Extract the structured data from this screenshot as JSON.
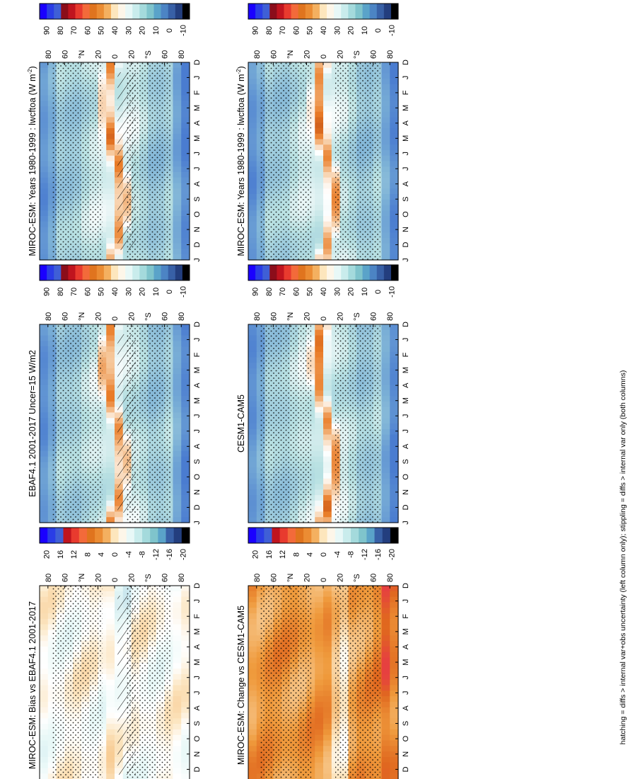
{
  "figure": {
    "caption": "hatching = diffs > internal var+obs uncertainty (left column only); stippling = diffs > internal var only (both columns)"
  },
  "colorbars": {
    "absolute": {
      "labels": [
        "90",
        "80",
        "70",
        "60",
        "50",
        "40",
        "30",
        "20",
        "10",
        "0",
        "-10"
      ],
      "colors": [
        "#1a00ff",
        "#2a3de6",
        "#3f5fd6",
        "#8b0d1a",
        "#c0141e",
        "#e83a2e",
        "#f36a3a",
        "#e0741e",
        "#eb8c33",
        "#f4b060",
        "#fde6bd",
        "#fdf6e9",
        "#e8f8f7",
        "#c9ecec",
        "#a4dadc",
        "#7fc4cc",
        "#5aa3c9",
        "#4c84c4",
        "#3860a6",
        "#233e7e",
        "#000000"
      ]
    },
    "difference": {
      "labels": [
        "20",
        "16",
        "12",
        "8",
        "4",
        "0",
        "-4",
        "-8",
        "-12",
        "-16",
        "-20"
      ],
      "colors": [
        "#1a00ff",
        "#2a3de6",
        "#3f5fd6",
        "#c0141e",
        "#e83a2e",
        "#f36a3a",
        "#e0741e",
        "#eb8c33",
        "#f4b060",
        "#fde6bd",
        "#fdf6e9",
        "#e8f8f7",
        "#c9ecec",
        "#a4dadc",
        "#7fc4cc",
        "#5aa3c9",
        "#3860a6",
        "#233e7e",
        "#000000"
      ]
    }
  },
  "chart_data": [
    {
      "type": "heatmap",
      "panel": "top-left",
      "title": "MIROC-ESM: Years 1980-1999 : lwcftoa (W m",
      "title_sup": "-2",
      "title_close": ")",
      "variable": "lwcftoa",
      "units": "W m-2",
      "x": [
        "D",
        "J",
        "F",
        "M",
        "A",
        "M",
        "J",
        "J",
        "A",
        "S",
        "O",
        "N",
        "D",
        "J"
      ],
      "y": [
        "80",
        "60",
        "°N",
        "20",
        "0",
        "20",
        "°S",
        "60",
        "80"
      ],
      "colorbar": "absolute",
      "range": [
        -10,
        90
      ],
      "hatching": true,
      "stippling": true
    },
    {
      "type": "heatmap",
      "panel": "top-right",
      "title": "MIROC-ESM: Years 1980-1999 : lwcftoa (W m",
      "title_sup": "-2",
      "title_close": ")",
      "variable": "lwcftoa",
      "units": "W m-2",
      "x": [
        "D",
        "J",
        "F",
        "M",
        "A",
        "M",
        "J",
        "J",
        "A",
        "S",
        "O",
        "N",
        "D",
        "J"
      ],
      "y": [
        "80",
        "60",
        "°N",
        "20",
        "0",
        "20",
        "°S",
        "60",
        "80"
      ],
      "colorbar": "absolute",
      "range": [
        -10,
        90
      ],
      "hatching": false,
      "stippling": true
    },
    {
      "type": "heatmap",
      "panel": "middle-left",
      "title": "EBAF4.1 2001-2017 Uncer=15 W/m2",
      "title_sup": "",
      "title_close": "",
      "x": [
        "D",
        "J",
        "F",
        "M",
        "A",
        "M",
        "J",
        "J",
        "A",
        "S",
        "O",
        "N",
        "D",
        "J"
      ],
      "y": [
        "80",
        "60",
        "°N",
        "20",
        "0",
        "20",
        "°S",
        "60",
        "80"
      ],
      "colorbar": "absolute",
      "range": [
        -10,
        90
      ],
      "hatching": true,
      "stippling": true
    },
    {
      "type": "heatmap",
      "panel": "middle-right",
      "title": "CESM1-CAM5",
      "title_sup": "",
      "title_close": "",
      "x": [
        "D",
        "J",
        "F",
        "M",
        "A",
        "M",
        "J",
        "J",
        "A",
        "S",
        "O",
        "N",
        "D",
        "J"
      ],
      "y": [
        "80",
        "60",
        "°N",
        "20",
        "0",
        "20",
        "°S",
        "60",
        "80"
      ],
      "colorbar": "absolute",
      "range": [
        -10,
        90
      ],
      "hatching": false,
      "stippling": true
    },
    {
      "type": "heatmap",
      "panel": "bottom-left",
      "title": "MIROC-ESM: Bias vs EBAF4.1 2001-2017",
      "title_sup": "",
      "title_close": "",
      "x": [
        "D",
        "J",
        "F",
        "M",
        "A",
        "M",
        "J",
        "J",
        "A",
        "S",
        "O",
        "N",
        "D",
        "J"
      ],
      "y": [
        "80",
        "60",
        "°N",
        "20",
        "0",
        "20",
        "°S",
        "60",
        "80"
      ],
      "colorbar": "difference",
      "range": [
        -20,
        20
      ],
      "hatching": true,
      "stippling": true
    },
    {
      "type": "heatmap",
      "panel": "bottom-right",
      "title": "MIROC-ESM: Change vs CESM1-CAM5",
      "title_sup": "",
      "title_close": "",
      "x": [
        "D",
        "J",
        "F",
        "M",
        "A",
        "M",
        "J",
        "J",
        "A",
        "S",
        "O",
        "N",
        "D",
        "J"
      ],
      "y": [
        "80",
        "60",
        "°N",
        "20",
        "0",
        "20",
        "°S",
        "60",
        "80"
      ],
      "colorbar": "difference",
      "range": [
        -20,
        20
      ],
      "hatching": false,
      "stippling": true
    }
  ]
}
